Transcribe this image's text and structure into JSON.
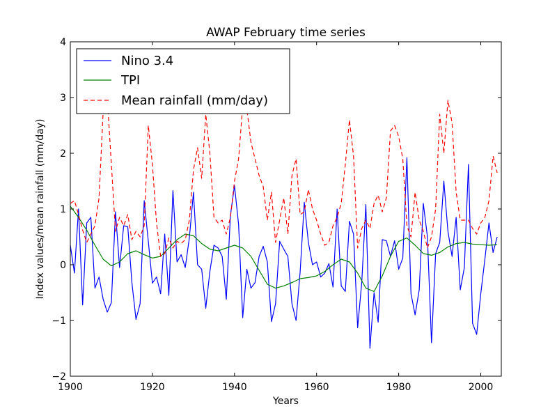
{
  "chart_data": {
    "type": "line",
    "title": "AWAP February time series",
    "xlabel": "Years",
    "ylabel": "Index values/mean rainfall (mm/day)",
    "xlim": [
      1900,
      2005
    ],
    "ylim": [
      -2,
      4
    ],
    "xticks": [
      1900,
      1920,
      1940,
      1960,
      1980,
      2000
    ],
    "yticks": [
      -2,
      -1,
      0,
      1,
      2,
      3,
      4
    ],
    "xtick_labels": [
      "1900",
      "1920",
      "1940",
      "1960",
      "1980",
      "2000"
    ],
    "ytick_labels": [
      "−2",
      "−1",
      "0",
      "1",
      "2",
      "3",
      "4"
    ],
    "grid": false,
    "legend_position": "top-left",
    "series": [
      {
        "name": "Nino 3.4",
        "color": "#0000ff",
        "style": "solid",
        "x": [
          1900,
          1901,
          1902,
          1903,
          1904,
          1905,
          1906,
          1907,
          1908,
          1909,
          1910,
          1911,
          1912,
          1913,
          1914,
          1915,
          1916,
          1917,
          1918,
          1919,
          1920,
          1921,
          1922,
          1923,
          1924,
          1925,
          1926,
          1927,
          1928,
          1929,
          1930,
          1931,
          1932,
          1933,
          1934,
          1935,
          1936,
          1937,
          1938,
          1939,
          1940,
          1941,
          1942,
          1943,
          1944,
          1945,
          1946,
          1947,
          1948,
          1949,
          1950,
          1951,
          1952,
          1953,
          1954,
          1955,
          1956,
          1957,
          1958,
          1959,
          1960,
          1961,
          1962,
          1963,
          1964,
          1965,
          1966,
          1967,
          1968,
          1969,
          1970,
          1971,
          1972,
          1973,
          1974,
          1975,
          1976,
          1977,
          1978,
          1979,
          1980,
          1981,
          1982,
          1983,
          1984,
          1985,
          1986,
          1987,
          1988,
          1989,
          1990,
          1991,
          1992,
          1993,
          1994,
          1995,
          1996,
          1997,
          1998,
          1999,
          2000,
          2001,
          2002,
          2003,
          2004
        ],
        "values": [
          0.35,
          -0.15,
          1.0,
          -0.72,
          0.75,
          0.85,
          -0.42,
          -0.22,
          -0.62,
          -0.85,
          -0.68,
          0.95,
          -0.05,
          0.7,
          0.68,
          -0.32,
          -0.98,
          -0.7,
          1.15,
          0.42,
          -0.33,
          -0.22,
          -0.52,
          0.55,
          -0.55,
          1.33,
          0.05,
          0.18,
          -0.05,
          0.48,
          1.3,
          0.0,
          -0.08,
          -0.78,
          -0.12,
          0.35,
          0.3,
          0.15,
          -0.62,
          0.88,
          1.42,
          0.72,
          -0.95,
          -0.08,
          -0.42,
          -0.32,
          0.15,
          0.33,
          0.05,
          -1.02,
          -0.7,
          0.42,
          0.28,
          0.15,
          -0.7,
          -1.0,
          -0.12,
          1.12,
          0.4,
          0.0,
          0.05,
          -0.22,
          -0.15,
          0.02,
          -0.4,
          1.0,
          -0.38,
          -0.48,
          0.78,
          0.55,
          -1.13,
          -0.32,
          1.08,
          -1.5,
          -0.5,
          -1.03,
          0.45,
          0.43,
          0.15,
          0.43,
          -0.08,
          0.12,
          1.92,
          -0.52,
          -0.9,
          -0.45,
          1.1,
          0.5,
          -1.4,
          0.2,
          0.4,
          1.5,
          0.6,
          0.15,
          0.85,
          -0.45,
          -0.05,
          1.8,
          -1.05,
          -1.25,
          -0.52,
          0.1,
          0.75,
          0.22,
          0.5
        ]
      },
      {
        "name": "TPI",
        "color": "#008000",
        "style": "solid",
        "x": [
          1900,
          1902,
          1904,
          1906,
          1908,
          1910,
          1912,
          1914,
          1916,
          1918,
          1920,
          1922,
          1924,
          1926,
          1928,
          1930,
          1932,
          1934,
          1936,
          1938,
          1940,
          1942,
          1944,
          1946,
          1948,
          1950,
          1952,
          1954,
          1956,
          1958,
          1960,
          1962,
          1964,
          1966,
          1968,
          1970,
          1972,
          1974,
          1976,
          1978,
          1980,
          1982,
          1984,
          1986,
          1988,
          1990,
          1992,
          1994,
          1996,
          1998,
          2000,
          2002,
          2004
        ],
        "values": [
          1.05,
          0.85,
          0.62,
          0.35,
          0.1,
          -0.02,
          0.05,
          0.2,
          0.25,
          0.18,
          0.12,
          0.15,
          0.3,
          0.45,
          0.55,
          0.52,
          0.38,
          0.28,
          0.25,
          0.3,
          0.35,
          0.3,
          0.15,
          -0.1,
          -0.35,
          -0.42,
          -0.38,
          -0.32,
          -0.25,
          -0.23,
          -0.2,
          -0.12,
          0.0,
          0.1,
          0.05,
          -0.15,
          -0.42,
          -0.48,
          -0.2,
          0.15,
          0.42,
          0.48,
          0.35,
          0.2,
          0.17,
          0.22,
          0.32,
          0.38,
          0.4,
          0.37,
          0.36,
          0.35,
          0.36
        ]
      },
      {
        "name": "Mean rainfall (mm/day)",
        "color": "#ff0000",
        "style": "dashed",
        "x": [
          1900,
          1901,
          1902,
          1903,
          1904,
          1905,
          1906,
          1907,
          1908,
          1909,
          1910,
          1911,
          1912,
          1913,
          1914,
          1915,
          1916,
          1917,
          1918,
          1919,
          1920,
          1921,
          1922,
          1923,
          1924,
          1925,
          1926,
          1927,
          1928,
          1929,
          1930,
          1931,
          1932,
          1933,
          1934,
          1935,
          1936,
          1937,
          1938,
          1939,
          1940,
          1941,
          1942,
          1943,
          1944,
          1945,
          1946,
          1947,
          1948,
          1949,
          1950,
          1951,
          1952,
          1953,
          1954,
          1955,
          1956,
          1957,
          1958,
          1959,
          1960,
          1961,
          1962,
          1963,
          1964,
          1965,
          1966,
          1967,
          1968,
          1969,
          1970,
          1971,
          1972,
          1973,
          1974,
          1975,
          1976,
          1977,
          1978,
          1979,
          1980,
          1981,
          1982,
          1983,
          1984,
          1985,
          1986,
          1987,
          1988,
          1989,
          1990,
          1991,
          1992,
          1993,
          1994,
          1995,
          1996,
          1997,
          1998,
          1999,
          2000,
          2001,
          2002,
          2003,
          2004
        ],
        "values": [
          1.1,
          1.15,
          0.9,
          0.62,
          0.4,
          0.55,
          0.7,
          1.2,
          2.75,
          3.0,
          1.8,
          0.6,
          0.85,
          0.7,
          0.9,
          0.45,
          0.6,
          0.5,
          0.7,
          2.5,
          1.8,
          0.75,
          0.15,
          0.2,
          0.48,
          0.3,
          0.42,
          0.38,
          0.45,
          0.8,
          1.7,
          2.1,
          1.55,
          2.7,
          2.0,
          0.85,
          0.75,
          0.8,
          0.55,
          0.85,
          1.5,
          1.9,
          2.85,
          2.8,
          2.2,
          1.9,
          1.6,
          1.4,
          0.8,
          1.3,
          0.4,
          0.8,
          1.2,
          0.55,
          1.6,
          1.9,
          0.9,
          0.95,
          1.35,
          1.0,
          0.8,
          0.55,
          0.35,
          0.4,
          0.7,
          0.85,
          1.1,
          1.8,
          2.6,
          1.95,
          0.3,
          0.65,
          0.8,
          0.65,
          1.1,
          1.25,
          0.95,
          1.2,
          2.4,
          2.5,
          2.3,
          1.9,
          0.7,
          0.5,
          1.3,
          0.8,
          0.6,
          0.3,
          0.5,
          1.0,
          2.7,
          2.0,
          2.95,
          2.55,
          1.3,
          0.8,
          0.8,
          0.8,
          0.65,
          0.55,
          0.75,
          0.85,
          1.15,
          1.95,
          1.65
        ]
      }
    ]
  }
}
